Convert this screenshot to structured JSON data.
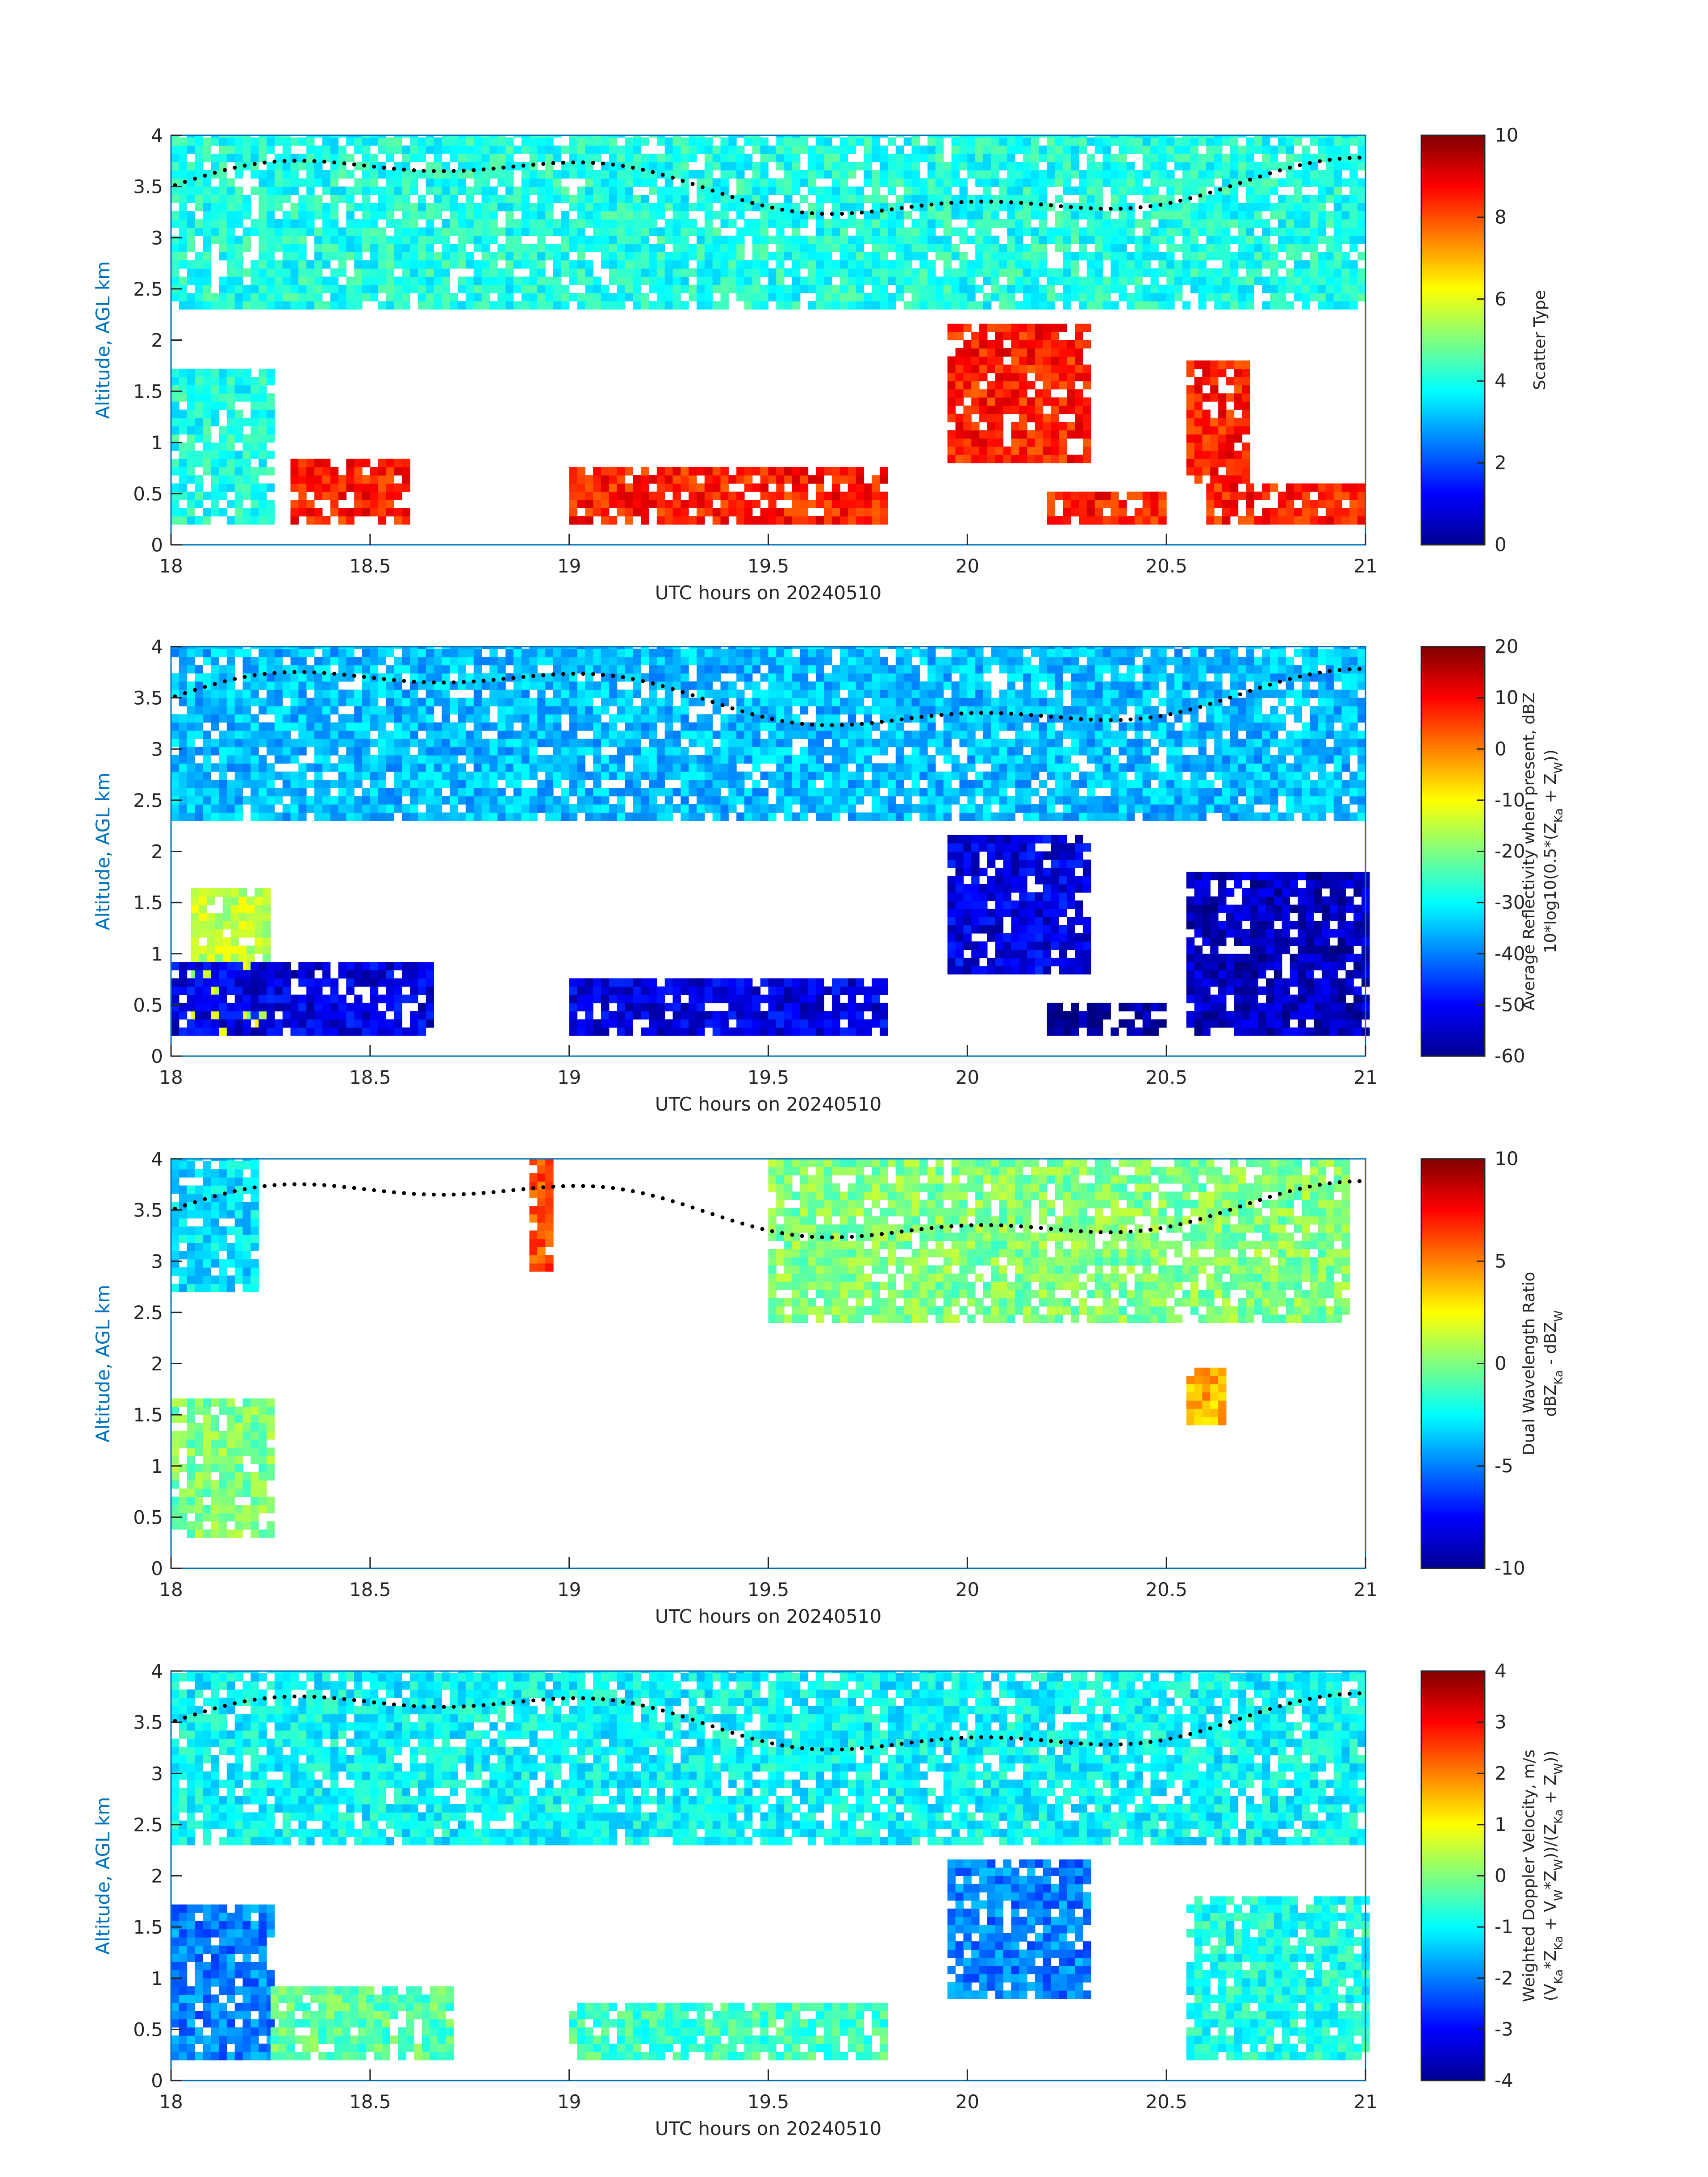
{
  "chart_data": [
    {
      "type": "heatmap",
      "xlabel": "UTC hours on 20240510",
      "ylabel": "Altitude, AGL km",
      "xlim": [
        18,
        21
      ],
      "ylim": [
        0,
        4
      ],
      "xticks": [
        "18",
        "18.5",
        "19",
        "19.5",
        "20",
        "20.5",
        "21"
      ],
      "yticks": [
        "0",
        "0.5",
        "1",
        "1.5",
        "2",
        "2.5",
        "3",
        "3.5",
        "4"
      ],
      "colorbar_label": [
        "Scatter Type"
      ],
      "colorbar_range": [
        0,
        10
      ],
      "colorbar_ticks": [
        "0",
        "2",
        "4",
        "6",
        "8",
        "10"
      ],
      "colormap": "jet",
      "overlay": "black dotted layer-height markers",
      "regions": [
        {
          "x": [
            18.0,
            21.0
          ],
          "y": [
            2.3,
            4.0
          ],
          "value": 4
        },
        {
          "x": [
            18.0,
            18.25
          ],
          "y": [
            0.2,
            1.7
          ],
          "value": 4
        },
        {
          "x": [
            18.3,
            18.6
          ],
          "y": [
            0.2,
            0.8
          ],
          "value": 8.5
        },
        {
          "x": [
            19.0,
            19.8
          ],
          "y": [
            0.2,
            0.7
          ],
          "value": 8.5
        },
        {
          "x": [
            19.95,
            20.3
          ],
          "y": [
            0.8,
            2.1
          ],
          "value": 8.5
        },
        {
          "x": [
            20.2,
            20.5
          ],
          "y": [
            0.2,
            0.45
          ],
          "value": 8.5
        },
        {
          "x": [
            20.55,
            20.7
          ],
          "y": [
            0.6,
            1.8
          ],
          "value": 8.5
        },
        {
          "x": [
            20.6,
            21.0
          ],
          "y": [
            0.2,
            0.6
          ],
          "value": 8.5
        }
      ]
    },
    {
      "type": "heatmap",
      "xlabel": "UTC hours on 20240510",
      "ylabel": "Altitude, AGL km",
      "xlim": [
        18,
        21
      ],
      "ylim": [
        0,
        4
      ],
      "xticks": [
        "18",
        "18.5",
        "19",
        "19.5",
        "20",
        "20.5",
        "21"
      ],
      "yticks": [
        "0",
        "0.5",
        "1",
        "1.5",
        "2",
        "2.5",
        "3",
        "3.5",
        "4"
      ],
      "colorbar_label": [
        "Average Reflectivity when present, dBZ",
        "10*log10(0.5*(Z_Ka + Z_W))"
      ],
      "colorbar_range": [
        -60,
        20
      ],
      "colorbar_ticks": [
        "-60",
        "-50",
        "-40",
        "-30",
        "-20",
        "-10",
        "0",
        "10",
        "20"
      ],
      "colormap": "jet",
      "overlay": "black dotted layer-height markers",
      "regions": [
        {
          "x": [
            18.0,
            21.0
          ],
          "y": [
            2.3,
            4.0
          ],
          "value": -35
        },
        {
          "x": [
            18.05,
            18.25
          ],
          "y": [
            0.2,
            1.6
          ],
          "value": -15
        },
        {
          "x": [
            18.0,
            18.65
          ],
          "y": [
            0.2,
            0.9
          ],
          "value": -52
        },
        {
          "x": [
            19.0,
            19.8
          ],
          "y": [
            0.2,
            0.7
          ],
          "value": -52
        },
        {
          "x": [
            19.95,
            20.3
          ],
          "y": [
            0.8,
            2.1
          ],
          "value": -52
        },
        {
          "x": [
            20.2,
            20.5
          ],
          "y": [
            0.2,
            0.45
          ],
          "value": -58
        },
        {
          "x": [
            20.55,
            21.0
          ],
          "y": [
            0.2,
            1.8
          ],
          "value": -55
        }
      ]
    },
    {
      "type": "heatmap",
      "xlabel": "UTC hours on 20240510",
      "ylabel": "Altitude, AGL km",
      "xlim": [
        18,
        21
      ],
      "ylim": [
        0,
        4
      ],
      "xticks": [
        "18",
        "18.5",
        "19",
        "19.5",
        "20",
        "20.5",
        "21"
      ],
      "yticks": [
        "0",
        "0.5",
        "1",
        "1.5",
        "2",
        "2.5",
        "3",
        "3.5",
        "4"
      ],
      "colorbar_label": [
        "Dual Wavelength Ratio",
        "dBZ_Ka - dBZ_W"
      ],
      "colorbar_range": [
        -10,
        10
      ],
      "colorbar_ticks": [
        "-10",
        "-5",
        "0",
        "5",
        "10"
      ],
      "colormap": "jet",
      "overlay": "black dotted layer-height markers",
      "regions": [
        {
          "x": [
            18.0,
            18.22
          ],
          "y": [
            2.7,
            4.0
          ],
          "value": -3
        },
        {
          "x": [
            18.0,
            18.25
          ],
          "y": [
            0.3,
            1.6
          ],
          "value": 0
        },
        {
          "x": [
            18.9,
            18.95
          ],
          "y": [
            2.9,
            4.0
          ],
          "value": 6
        },
        {
          "x": [
            19.5,
            20.95
          ],
          "y": [
            2.4,
            4.0
          ],
          "value": 0
        },
        {
          "x": [
            20.55,
            20.65
          ],
          "y": [
            1.4,
            1.9
          ],
          "value": 4
        }
      ]
    },
    {
      "type": "heatmap",
      "xlabel": "UTC hours on 20240510",
      "ylabel": "Altitude, AGL km",
      "xlim": [
        18,
        21
      ],
      "ylim": [
        0,
        4
      ],
      "xticks": [
        "18",
        "18.5",
        "19",
        "19.5",
        "20",
        "20.5",
        "21"
      ],
      "yticks": [
        "0",
        "0.5",
        "1",
        "1.5",
        "2",
        "2.5",
        "3",
        "3.5",
        "4"
      ],
      "colorbar_label": [
        "Weighted Doppler Velocity, m/s",
        "(V_Ka*Z_Ka + V_W*Z_W))/(Z_Ka + Z_W))"
      ],
      "colorbar_range": [
        -4,
        4
      ],
      "colorbar_ticks": [
        "-4",
        "-3",
        "-2",
        "-1",
        "0",
        "1",
        "2",
        "3",
        "4"
      ],
      "colormap": "jet",
      "overlay": "black dotted layer-height markers",
      "regions": [
        {
          "x": [
            18.0,
            21.0
          ],
          "y": [
            2.3,
            4.0
          ],
          "value": -1
        },
        {
          "x": [
            18.0,
            18.25
          ],
          "y": [
            0.2,
            1.7
          ],
          "value": -2
        },
        {
          "x": [
            18.25,
            18.7
          ],
          "y": [
            0.2,
            0.9
          ],
          "value": -0.3
        },
        {
          "x": [
            19.0,
            19.8
          ],
          "y": [
            0.2,
            0.7
          ],
          "value": -0.5
        },
        {
          "x": [
            19.95,
            20.3
          ],
          "y": [
            0.8,
            2.1
          ],
          "value": -2
        },
        {
          "x": [
            20.55,
            21.0
          ],
          "y": [
            0.2,
            1.8
          ],
          "value": -0.8
        }
      ]
    }
  ]
}
